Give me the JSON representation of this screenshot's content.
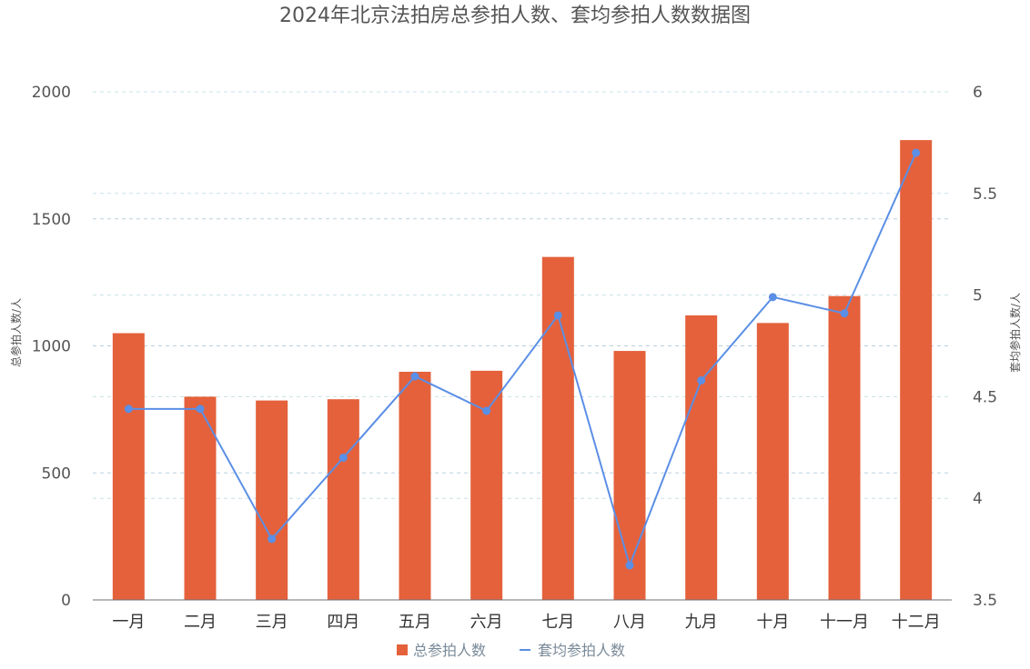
{
  "chart_data": {
    "type": "bar+line",
    "title": "2024年北京法拍房总参拍人数、套均参拍人数数据图",
    "categories": [
      "一月",
      "二月",
      "三月",
      "四月",
      "五月",
      "六月",
      "七月",
      "八月",
      "九月",
      "十月",
      "十一月",
      "十二月"
    ],
    "series": [
      {
        "name": "总参拍人数",
        "type": "bar",
        "axis": "left",
        "color": "#e4613b",
        "values": [
          1050,
          800,
          785,
          790,
          898,
          902,
          1350,
          980,
          1120,
          1090,
          1196,
          1810
        ]
      },
      {
        "name": "套均参拍人数",
        "type": "line",
        "axis": "right",
        "color": "#5b8fe6",
        "values": [
          4.44,
          4.44,
          3.8,
          4.2,
          4.6,
          4.43,
          4.9,
          3.67,
          4.58,
          4.99,
          4.91,
          5.7
        ]
      }
    ],
    "y_left": {
      "label": "总参拍人数/人",
      "min": 0,
      "max": 2000,
      "ticks": [
        "0",
        "500",
        "1000",
        "1500",
        "2000"
      ]
    },
    "y_right": {
      "label": "套均参拍人数/人",
      "min": 3.5,
      "max": 6,
      "ticks": [
        "3.5",
        "4",
        "4.5",
        "5",
        "5.5",
        "6"
      ]
    },
    "grid": true,
    "legend": "bottom-center"
  }
}
